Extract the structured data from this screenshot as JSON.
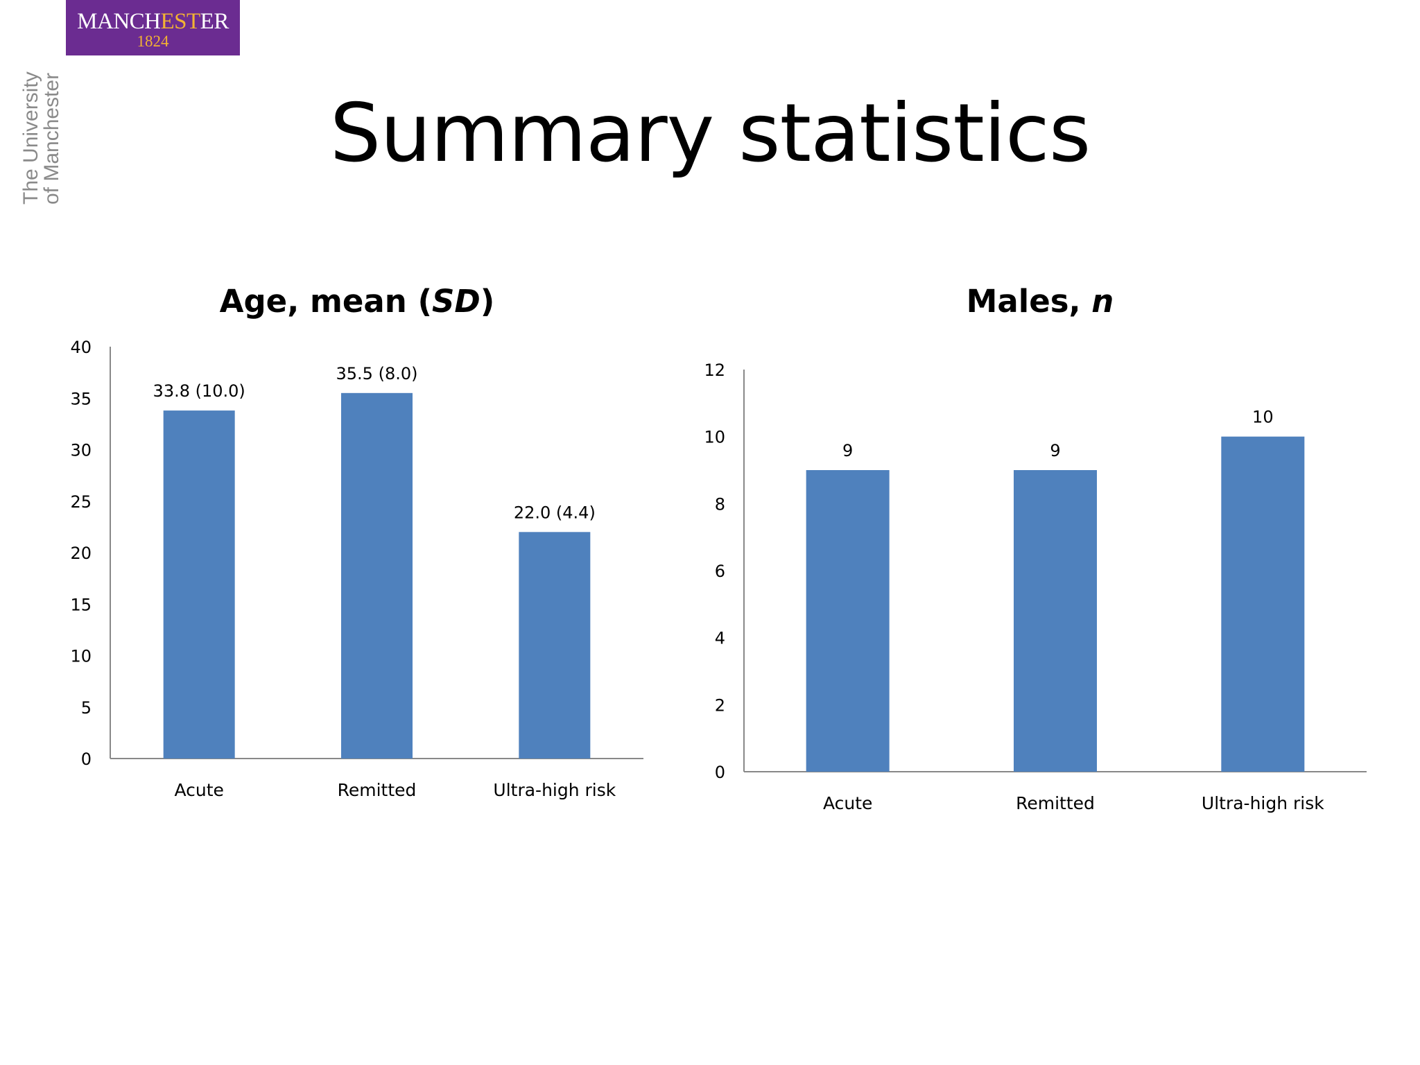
{
  "logo": {
    "wordmark_a": "MANCH",
    "wordmark_b": "EST",
    "wordmark_c": "ER",
    "year": "1824",
    "vertical_line1": "The University",
    "vertical_line2": "of Manchester",
    "colors": {
      "background": "#6b2c91",
      "accent": "#f2b233",
      "vertical_text": "#8a8a8a"
    }
  },
  "slide": {
    "title": "Summary statistics"
  },
  "chart_data": [
    {
      "type": "bar",
      "title_main": "Age, mean (",
      "title_italic": "SD",
      "title_end": ")",
      "categories": [
        "Acute",
        "Remitted",
        "Ultra-high risk"
      ],
      "values": [
        33.8,
        35.5,
        22.0
      ],
      "data_labels": [
        "33.8 (10.0)",
        "35.5 (8.0)",
        "22.0 (4.4)"
      ],
      "ylim": [
        0,
        40
      ],
      "yticks": [
        "0",
        "5",
        "10",
        "15",
        "20",
        "25",
        "30",
        "35",
        "40"
      ],
      "grid": false,
      "legend": "none",
      "bar_color": "#4f81bd"
    },
    {
      "type": "bar",
      "title_main": "Males, ",
      "title_italic": "n",
      "title_end": "",
      "categories": [
        "Acute",
        "Remitted",
        "Ultra-high risk"
      ],
      "values": [
        9,
        9,
        10
      ],
      "data_labels": [
        "9",
        "9",
        "10"
      ],
      "ylim": [
        0,
        12
      ],
      "yticks": [
        "0",
        "2",
        "4",
        "6",
        "8",
        "10",
        "12"
      ],
      "grid": false,
      "legend": "none",
      "bar_color": "#4f81bd"
    }
  ]
}
